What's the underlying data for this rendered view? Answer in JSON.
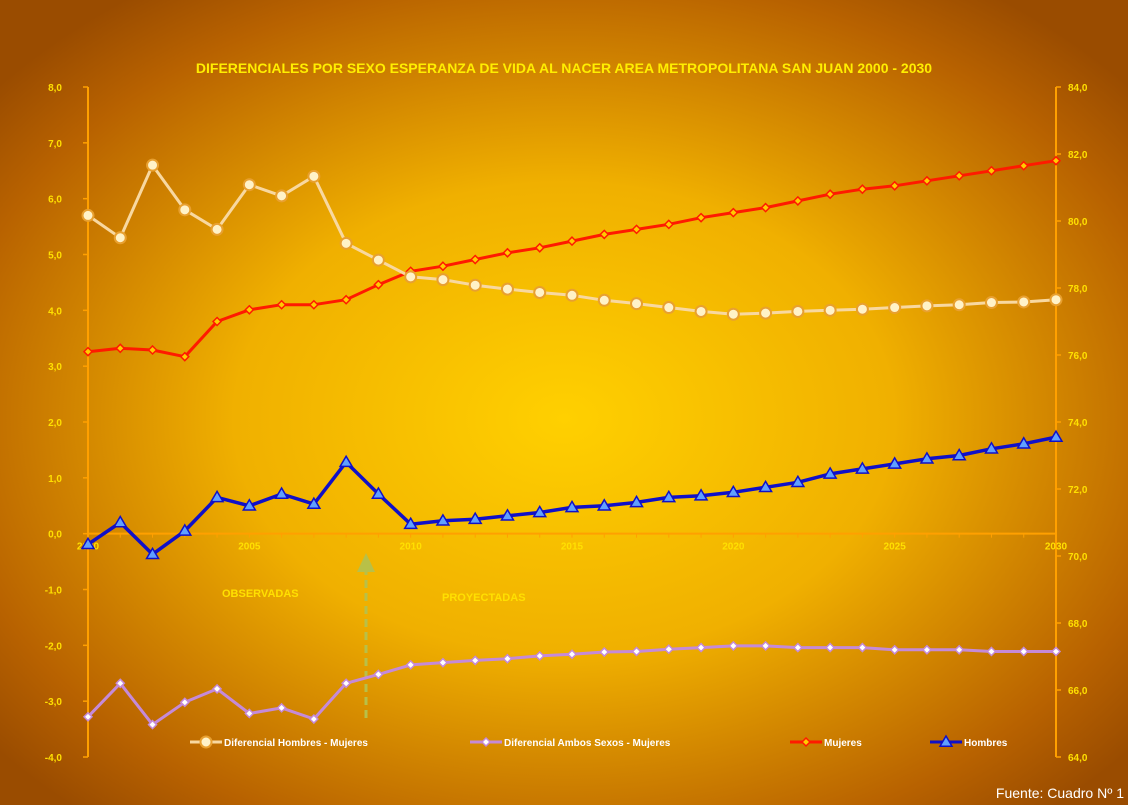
{
  "chart_data": {
    "type": "line",
    "title": "DIFERENCIALES POR SEXO ESPERANZA DE VIDA AL NACER  AREA METROPOLITANA SAN JUAN 2000 - 2030",
    "x": [
      2000,
      2001,
      2002,
      2003,
      2004,
      2005,
      2006,
      2007,
      2008,
      2009,
      2010,
      2011,
      2012,
      2013,
      2014,
      2015,
      2016,
      2017,
      2018,
      2019,
      2020,
      2021,
      2022,
      2023,
      2024,
      2025,
      2026,
      2027,
      2028,
      2029,
      2030
    ],
    "x_tick_labels": [
      "2000",
      "2005",
      "2010",
      "2015",
      "2020",
      "2025",
      "2030"
    ],
    "xlim": [
      2000,
      2030
    ],
    "y_left": {
      "ylim": [
        -4.0,
        8.0
      ],
      "ticks": [
        "-4,0",
        "-3,0",
        "-2,0",
        "-1,0",
        "0,0",
        "1,0",
        "2,0",
        "3,0",
        "4,0",
        "5,0",
        "6,0",
        "7,0",
        "8,0"
      ]
    },
    "y_right": {
      "ylim": [
        64.0,
        84.0
      ],
      "ticks": [
        "64,0",
        "66,0",
        "68,0",
        "70,0",
        "72,0",
        "74,0",
        "76,0",
        "78,0",
        "80,0",
        "82,0",
        "84,0"
      ]
    },
    "series": [
      {
        "name": "Diferencial Hombres - Mujeres",
        "axis": "left",
        "color": "#f8d8a0",
        "marker": "circle",
        "values": [
          5.7,
          5.3,
          6.6,
          5.8,
          5.45,
          6.25,
          6.05,
          6.4,
          5.2,
          4.9,
          4.6,
          4.55,
          4.45,
          4.38,
          4.32,
          4.27,
          4.18,
          4.12,
          4.05,
          3.98,
          3.93,
          3.95,
          3.98,
          4.0,
          4.02,
          4.05,
          4.08,
          4.1,
          4.14,
          4.15,
          4.19
        ]
      },
      {
        "name": "Diferencial Ambos Sexos - Mujeres",
        "axis": "left",
        "color": "#c58ad8",
        "marker": "diamond",
        "values": [
          -3.28,
          -2.68,
          -3.42,
          -3.02,
          -2.78,
          -3.22,
          -3.12,
          -3.32,
          -2.68,
          -2.52,
          -2.35,
          -2.31,
          -2.27,
          -2.24,
          -2.19,
          -2.16,
          -2.12,
          -2.11,
          -2.07,
          -2.04,
          -2.01,
          -2.01,
          -2.04,
          -2.04,
          -2.04,
          -2.08,
          -2.08,
          -2.08,
          -2.11,
          -2.11,
          -2.11
        ]
      },
      {
        "name": "Mujeres",
        "axis": "right",
        "color": "#ff1a00",
        "marker": "diamond",
        "values": [
          76.1,
          76.2,
          76.15,
          75.95,
          77.0,
          77.35,
          77.5,
          77.5,
          77.65,
          78.1,
          78.5,
          78.65,
          78.85,
          79.05,
          79.2,
          79.4,
          79.6,
          79.75,
          79.9,
          80.1,
          80.25,
          80.4,
          80.6,
          80.8,
          80.95,
          81.05,
          81.2,
          81.35,
          81.5,
          81.65,
          81.8
        ]
      },
      {
        "name": "Hombres",
        "axis": "right",
        "color": "#1010c8",
        "marker": "triangle",
        "values": [
          70.35,
          71.0,
          70.05,
          70.75,
          71.75,
          71.5,
          71.85,
          71.55,
          72.8,
          71.85,
          70.95,
          71.05,
          71.1,
          71.2,
          71.3,
          71.45,
          71.5,
          71.6,
          71.75,
          71.8,
          71.9,
          72.05,
          72.2,
          72.45,
          72.6,
          72.75,
          72.9,
          73.0,
          73.2,
          73.35,
          73.55
        ]
      }
    ],
    "annotations": {
      "observed": "OBSERVADAS",
      "projected": "PROYECTADAS"
    },
    "legend": {
      "placement": "bottom"
    },
    "grid": false
  },
  "source_note": "Fuente: Cuadro Nº 1"
}
